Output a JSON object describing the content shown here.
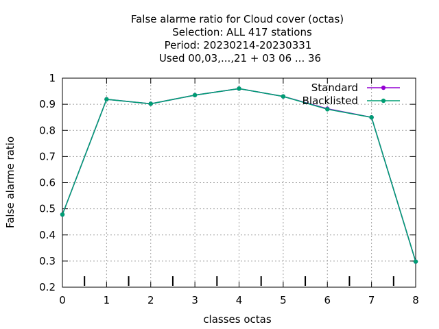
{
  "chart_data": {
    "type": "line",
    "title_lines": [
      "False alarme ratio  for Cloud cover (octas)",
      "Selection: ALL    417 stations",
      "Period: 20230214-20230331",
      "Used  00,03,...,21  + 03 06 ... 36"
    ],
    "xlabel": "classes octas",
    "ylabel": "False alarme ratio",
    "xlim": [
      0,
      8
    ],
    "ylim": [
      0.2,
      1
    ],
    "xticks": [
      0,
      1,
      2,
      3,
      4,
      5,
      6,
      7,
      8
    ],
    "yticks": [
      0.2,
      0.3,
      0.4,
      0.5,
      0.6,
      0.7,
      0.8,
      0.9,
      1
    ],
    "ytick_labels": [
      "0.2",
      "0.3",
      "0.4",
      "0.5",
      "0.6",
      "0.7",
      "0.8",
      "0.9",
      "1"
    ],
    "grid": true,
    "legend_position": "top-right",
    "class_boundary_marks": [
      0.5,
      1.5,
      2.5,
      3.5,
      4.5,
      5.5,
      6.5,
      7.5
    ],
    "x": [
      0,
      1,
      2,
      3,
      4,
      5,
      6,
      7,
      8
    ],
    "series": [
      {
        "name": "Standard",
        "color": "#9400d3",
        "values": [
          0.478,
          0.919,
          0.902,
          0.935,
          0.96,
          0.93,
          0.883,
          0.85,
          0.298
        ]
      },
      {
        "name": "Blacklisted",
        "color": "#009e73",
        "values": [
          0.478,
          0.919,
          0.902,
          0.935,
          0.96,
          0.93,
          0.881,
          0.85,
          0.298
        ]
      }
    ]
  }
}
